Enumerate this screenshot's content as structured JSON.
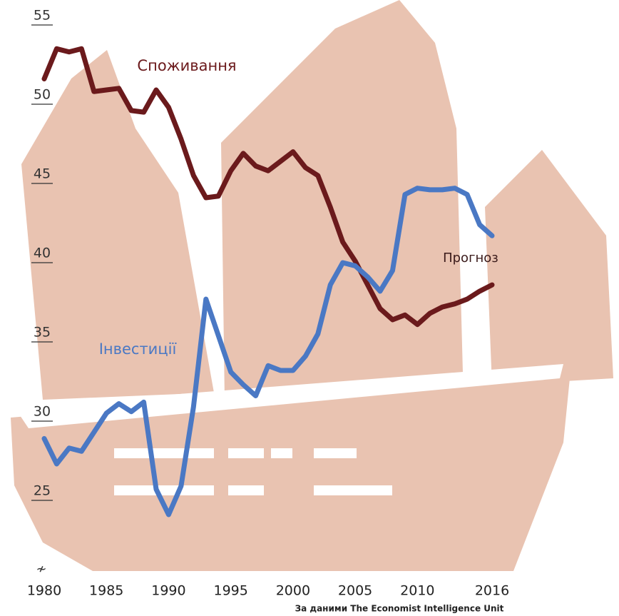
{
  "chart_data": {
    "type": "line",
    "x": [
      1980,
      1981,
      1982,
      1983,
      1984,
      1985,
      1986,
      1987,
      1988,
      1989,
      1990,
      1991,
      1992,
      1993,
      1994,
      1995,
      1996,
      1997,
      1998,
      1999,
      2000,
      2001,
      2002,
      2003,
      2004,
      2005,
      2006,
      2007,
      2008,
      2009,
      2010,
      2011,
      2012,
      2013,
      2014,
      2015,
      2016
    ],
    "series": [
      {
        "name": "Споживання",
        "color": "#6b1a1c",
        "values": [
          51.6,
          53.5,
          53.3,
          53.5,
          50.8,
          50.9,
          51.0,
          49.6,
          49.5,
          50.9,
          49.8,
          47.8,
          45.5,
          44.1,
          44.2,
          45.8,
          46.9,
          46.1,
          45.8,
          46.4,
          47.0,
          46.0,
          45.5,
          43.5,
          41.3,
          40.1,
          38.6,
          37.1,
          36.4,
          36.7,
          36.1,
          36.8,
          37.2,
          37.4,
          37.7,
          38.2,
          38.6
        ]
      },
      {
        "name": "Інвестиції",
        "color": "#4a78c4",
        "values": [
          28.9,
          27.3,
          28.3,
          28.1,
          29.3,
          30.5,
          31.1,
          30.6,
          31.2,
          25.7,
          24.1,
          25.9,
          30.9,
          37.7,
          35.4,
          33.1,
          32.3,
          31.6,
          33.5,
          33.2,
          33.2,
          34.1,
          35.5,
          38.6,
          40.0,
          39.8,
          39.1,
          38.2,
          39.5,
          44.3,
          44.7,
          44.6,
          44.6,
          44.7,
          44.3,
          42.4,
          41.7
        ]
      }
    ],
    "annotation": "Прогноз",
    "source": "За даними The Economist Intelligence Unit",
    "xlim": [
      1980,
      2016
    ],
    "xticks": [
      1980,
      1985,
      1990,
      1995,
      2000,
      2005,
      2010,
      2016
    ],
    "ylim": [
      21,
      56
    ],
    "yticks": [
      25,
      30,
      35,
      40,
      45,
      50,
      55
    ]
  }
}
